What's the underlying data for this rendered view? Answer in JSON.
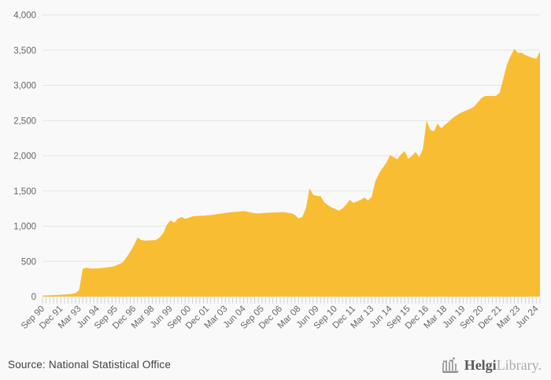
{
  "footer": {
    "source_label": "Source: National Statistical Office",
    "logo_strong": "Helgi",
    "logo_light": "Library."
  },
  "colors": {
    "area_fill": "#f9bd33",
    "background": "#f9f9f9",
    "gridline": "#e4e4e4",
    "tick_mark": "#c9d2e2",
    "axis_label": "#666666",
    "logo_gray": "#8f8f8f"
  },
  "chart_data": {
    "type": "area",
    "title": "",
    "xlabel": "",
    "ylabel": "",
    "legend": "none",
    "grid": "horizontal",
    "ylim": [
      0,
      4000
    ],
    "y_ticks": [
      0,
      500,
      1000,
      1500,
      2000,
      2500,
      3000,
      3500,
      4000
    ],
    "x_label_every": 5,
    "x_labels": [
      "Sep 90",
      "Dec 91",
      "Mar 93",
      "Jun 94",
      "Sep 95",
      "Dec 96",
      "Mar 98",
      "Jun 99",
      "Sep 00",
      "Dec 01",
      "Mar 03",
      "Jun 04",
      "Sep 05",
      "Dec 06",
      "Mar 08",
      "Jun 09",
      "Sep 10",
      "Dec 11",
      "Mar 13",
      "Jun 14",
      "Sep 15",
      "Dec 16",
      "Mar 18",
      "Jun 19",
      "Sep 20",
      "Dec 21",
      "Mar 23",
      "Jun 24"
    ],
    "frequency": "quarterly",
    "values": [
      15,
      17,
      19,
      21,
      24,
      26,
      29,
      33,
      38,
      50,
      90,
      395,
      410,
      400,
      398,
      400,
      405,
      410,
      416,
      424,
      440,
      462,
      490,
      560,
      640,
      730,
      840,
      805,
      795,
      798,
      800,
      805,
      840,
      900,
      1020,
      1085,
      1050,
      1105,
      1130,
      1106,
      1120,
      1140,
      1145,
      1148,
      1150,
      1155,
      1158,
      1165,
      1175,
      1180,
      1188,
      1195,
      1200,
      1205,
      1210,
      1215,
      1205,
      1195,
      1185,
      1180,
      1185,
      1190,
      1192,
      1194,
      1195,
      1198,
      1200,
      1192,
      1185,
      1160,
      1110,
      1130,
      1250,
      1540,
      1445,
      1430,
      1428,
      1340,
      1300,
      1268,
      1245,
      1220,
      1252,
      1307,
      1375,
      1330,
      1352,
      1376,
      1408,
      1363,
      1420,
      1640,
      1750,
      1830,
      1900,
      2010,
      1980,
      1950,
      2020,
      2067,
      1955,
      2000,
      2055,
      1977,
      2100,
      2502,
      2368,
      2346,
      2458,
      2391,
      2440,
      2480,
      2530,
      2569,
      2600,
      2625,
      2647,
      2669,
      2700,
      2760,
      2820,
      2849,
      2850,
      2848,
      2850,
      2900,
      3100,
      3300,
      3420,
      3518,
      3460,
      3465,
      3430,
      3410,
      3390,
      3380,
      3480
    ]
  }
}
